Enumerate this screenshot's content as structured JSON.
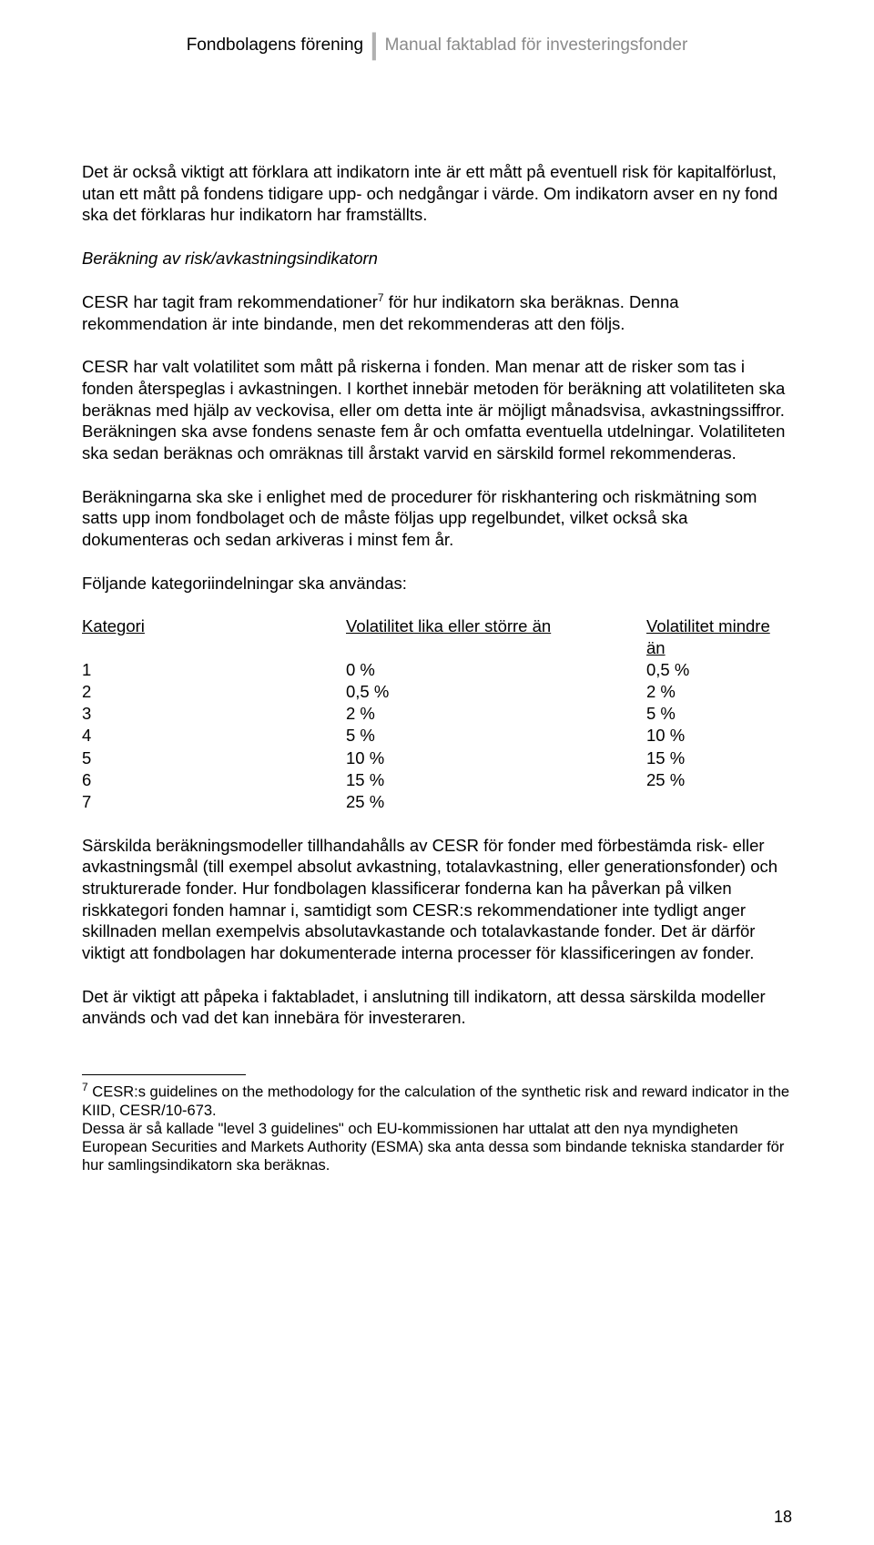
{
  "header": {
    "left": "Fondbolagens förening",
    "right": "Manual faktablad för investeringsfonder"
  },
  "para1": "Det är också viktigt att förklara att indikatorn inte är ett mått på eventuell risk för kapitalförlust, utan ett mått på fondens tidigare upp- och nedgångar i värde. Om indikatorn avser en ny fond ska det förklaras hur indikatorn har framställts.",
  "heading": "Beräkning av risk/avkastningsindikatorn",
  "para2a": "CESR har tagit fram rekommendationer",
  "para2b": " för hur indikatorn ska beräknas. Denna rekommendation är inte bindande, men det rekommenderas att den följs.",
  "para3": "CESR har valt volatilitet som mått på riskerna i fonden. Man menar att de risker som tas i fonden återspeglas i avkastningen. I korthet innebär metoden för beräkning att volatiliteten ska beräknas med hjälp av veckovisa, eller om detta inte är möjligt månadsvisa, avkastningssiffror. Beräkningen ska avse fondens senaste fem år och omfatta eventuella utdelningar. Volatiliteten ska sedan beräknas och omräknas till årstakt varvid en särskild formel rekommenderas.",
  "para4": "Beräkningarna ska ske i enlighet med de procedurer för riskhantering och riskmätning som satts upp inom fondbolaget och de måste följas upp regelbundet, vilket också ska dokumenteras och sedan arkiveras i minst fem år.",
  "para5": "Följande kategoriindelningar ska användas:",
  "table": {
    "col1_header": "Kategori",
    "col2_header": "Volatilitet lika eller större än",
    "col3_header": "Volatilitet mindre än",
    "rows": [
      {
        "c1": "1",
        "c2": "0 %",
        "c3": "0,5 %"
      },
      {
        "c1": "2",
        "c2": "0,5 %",
        "c3": "2 %"
      },
      {
        "c1": "3",
        "c2": "2 %",
        "c3": "5 %"
      },
      {
        "c1": "4",
        "c2": "5 %",
        "c3": "10 %"
      },
      {
        "c1": "5",
        "c2": "10 %",
        "c3": "15 %"
      },
      {
        "c1": "6",
        "c2": "15 %",
        "c3": "25 %"
      },
      {
        "c1": "7",
        "c2": "25 %",
        "c3": ""
      }
    ]
  },
  "para6": "Särskilda beräkningsmodeller tillhandahålls av CESR för fonder med förbestämda risk- eller avkastningsmål (till exempel absolut avkastning, totalavkastning, eller generationsfonder) och strukturerade fonder. Hur fondbolagen klassificerar fonderna kan ha påverkan på vilken riskkategori fonden hamnar i, samtidigt som CESR:s rekommendationer inte tydligt anger skillnaden mellan exempelvis absolutavkastande och totalavkastande fonder. Det är därför viktigt att fondbolagen har dokumenterade interna processer för klassificeringen av fonder.",
  "para7": "Det är viktigt att påpeka i faktabladet, i anslutning till indikatorn, att dessa särskilda modeller används och vad det kan innebära för investeraren.",
  "footnote_marker": "7",
  "footnote1": " CESR:s guidelines on the methodology for the calculation of the synthetic risk and reward indicator in the KIID, CESR/10-673.",
  "footnote2": "Dessa är så kallade \"level 3 guidelines\" och EU-kommissionen har uttalat att den nya myndigheten European Securities and Markets Authority (ESMA) ska anta dessa som bindande tekniska standarder för hur samlingsindikatorn ska beräknas.",
  "page_number": "18"
}
